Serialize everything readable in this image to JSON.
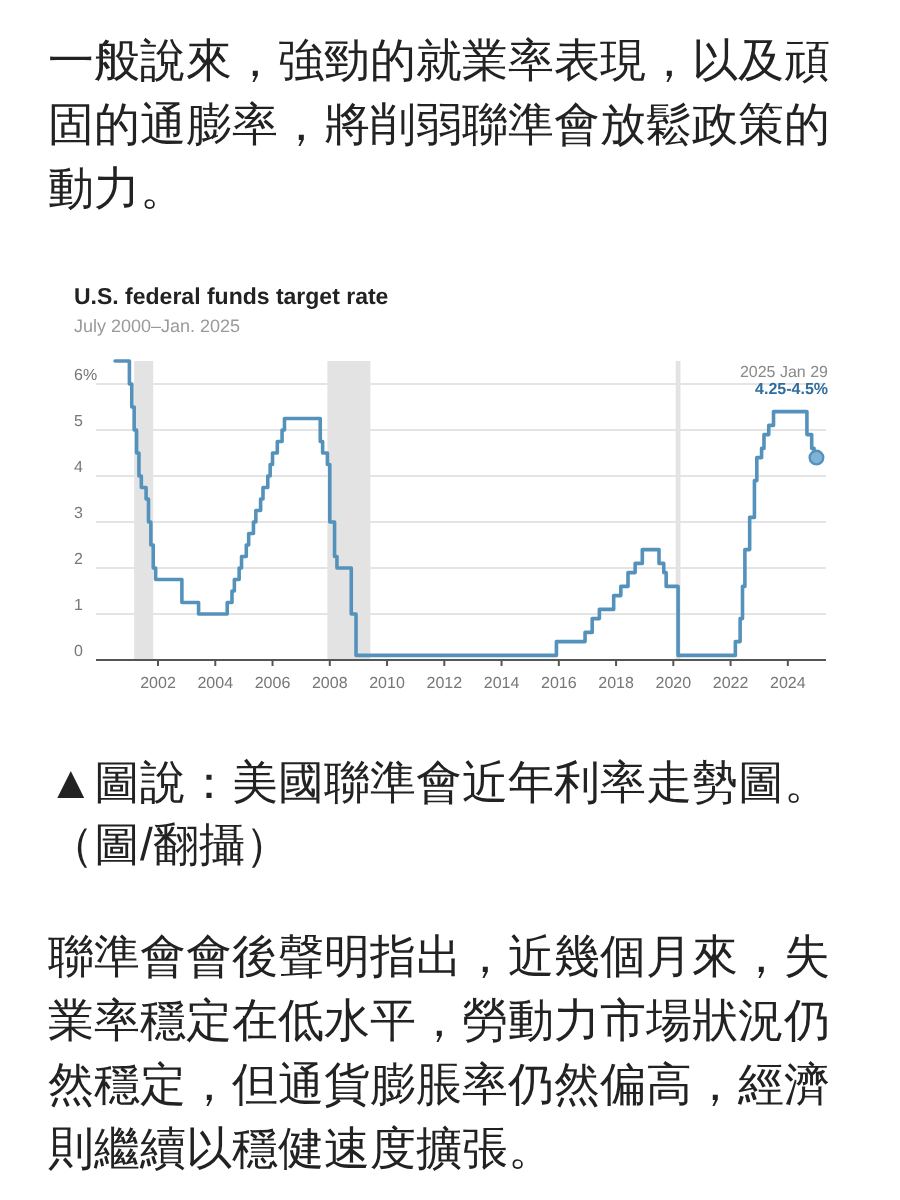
{
  "chart_data": {
    "type": "step",
    "title": "U.S. federal funds target rate",
    "subtitle": "July 2000–Jan. 2025",
    "series": [
      {
        "type": "step",
        "color": "#5592bb",
        "x": [
          "2000-07",
          "2001-01",
          "2001-02",
          "2001-03",
          "2001-04",
          "2001-05",
          "2001-06",
          "2001-08",
          "2001-09",
          "2001-10",
          "2001-11",
          "2001-12",
          "2002-11",
          "2003-06",
          "2004-06",
          "2004-08",
          "2004-09",
          "2004-11",
          "2004-12",
          "2005-02",
          "2005-03",
          "2005-05",
          "2005-06",
          "2005-08",
          "2005-09",
          "2005-11",
          "2005-12",
          "2006-01",
          "2006-03",
          "2006-05",
          "2006-06",
          "2007-09",
          "2007-10",
          "2007-12",
          "2008-01",
          "2008-03",
          "2008-04",
          "2008-10",
          "2008-12",
          "2015-12",
          "2016-12",
          "2017-03",
          "2017-06",
          "2017-12",
          "2018-03",
          "2018-06",
          "2018-09",
          "2018-12",
          "2019-07",
          "2019-09",
          "2019-10",
          "2020-03",
          "2022-03",
          "2022-05",
          "2022-06",
          "2022-07",
          "2022-09",
          "2022-11",
          "2022-12",
          "2023-02",
          "2023-03",
          "2023-05",
          "2023-07",
          "2024-09",
          "2024-11",
          "2024-12",
          "2025-01"
        ],
        "values": [
          6.5,
          6.0,
          5.5,
          5.0,
          4.5,
          4.0,
          3.75,
          3.5,
          3.0,
          2.5,
          2.0,
          1.75,
          1.25,
          1.0,
          1.25,
          1.5,
          1.75,
          2.0,
          2.25,
          2.5,
          2.75,
          3.0,
          3.25,
          3.5,
          3.75,
          4.0,
          4.25,
          4.5,
          4.75,
          5.0,
          5.25,
          4.75,
          4.5,
          4.25,
          3.0,
          2.25,
          2.0,
          1.0,
          0.1,
          0.4,
          0.6,
          0.9,
          1.1,
          1.4,
          1.6,
          1.9,
          2.1,
          2.4,
          2.1,
          1.9,
          1.6,
          0.1,
          0.4,
          0.9,
          1.6,
          2.4,
          3.1,
          3.9,
          4.4,
          4.6,
          4.9,
          5.1,
          5.4,
          4.9,
          4.6,
          4.4,
          4.4
        ]
      },
      {
        "type": "scatter",
        "color": "#5592bb",
        "marker": "circle",
        "x": [
          "2025-01"
        ],
        "values": [
          4.4
        ]
      }
    ],
    "xlim": [
      "1999-11",
      "2025-05"
    ],
    "xticks": [
      "2002",
      "2004",
      "2006",
      "2008",
      "2010",
      "2012",
      "2014",
      "2016",
      "2018",
      "2020",
      "2022",
      "2024"
    ],
    "ylim": [
      0,
      6.5
    ],
    "yticks": [
      0,
      1,
      2,
      3,
      4,
      5,
      {
        "value": 6,
        "label": "6%"
      }
    ],
    "grid": "y",
    "bands": [
      {
        "axis": "x",
        "from": "2001-03",
        "to": "2001-11",
        "color": "#e3e3e3"
      },
      {
        "axis": "x",
        "from": "2007-12",
        "to": "2009-06",
        "color": "#e3e3e3"
      },
      {
        "axis": "x",
        "from": "2020-02",
        "to": "2020-04",
        "color": "#e3e3e3"
      }
    ],
    "annotations": [
      "一般說來，強勁的就業率表現，以及頑固的通膨率，將削弱聯準會放鬆政策的動力。",
      "▲圖說：美國聯準會近年利率走勢圖。（圖/翻攝）",
      "聯準會會後聲明指出，近幾個月來，失業率穩定在低水平，勞動力市場狀況仍然穩定，但通貨膨脹率仍然偏高，經濟則繼續以穩健速度擴張。",
      "2025 Jan 29",
      "4.25-4.5%"
    ]
  }
}
